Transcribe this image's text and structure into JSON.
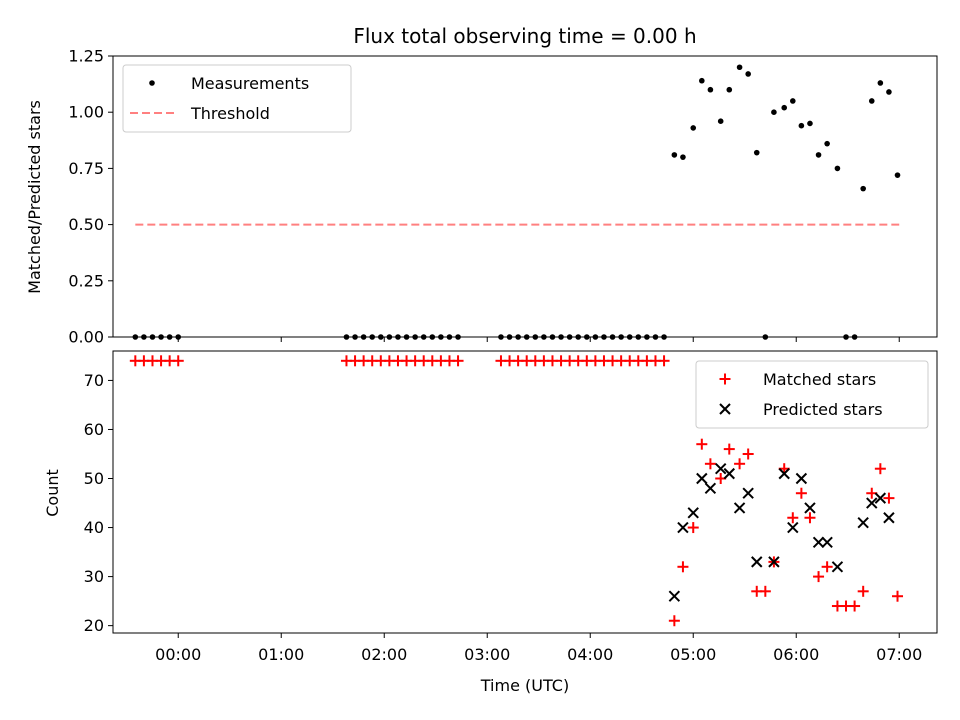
{
  "chart_data": [
    {
      "type": "scatter",
      "title": "Flux total observing time = 0.00 h",
      "ylabel": "Matched/Predicted stars",
      "ylim": [
        0,
        1.25
      ],
      "yticks": [
        "0.00",
        "0.25",
        "0.50",
        "0.75",
        "1.00",
        "1.25"
      ],
      "legend_position": "top-left",
      "series": [
        {
          "name": "Measurements",
          "marker": "dot",
          "color": "#000000",
          "x": [
            "23:35",
            "23:40",
            "23:45",
            "23:50",
            "23:55",
            "00:00",
            "01:38",
            "01:43",
            "01:48",
            "01:53",
            "01:58",
            "02:03",
            "02:08",
            "02:13",
            "02:18",
            "02:23",
            "02:28",
            "02:33",
            "02:38",
            "02:43",
            "03:08",
            "03:13",
            "03:18",
            "03:23",
            "03:28",
            "03:33",
            "03:38",
            "03:43",
            "03:48",
            "03:53",
            "03:58",
            "04:03",
            "04:08",
            "04:13",
            "04:18",
            "04:23",
            "04:28",
            "04:33",
            "04:38",
            "04:43",
            "04:49",
            "04:54",
            "05:00",
            "05:05",
            "05:10",
            "05:16",
            "05:21",
            "05:27",
            "05:32",
            "05:37",
            "05:42",
            "05:47",
            "05:53",
            "05:58",
            "06:03",
            "06:08",
            "06:13",
            "06:18",
            "06:24",
            "06:29",
            "06:34",
            "06:39",
            "06:44",
            "06:49",
            "06:54",
            "06:59"
          ],
          "y": [
            0,
            0,
            0,
            0,
            0,
            0,
            0,
            0,
            0,
            0,
            0,
            0,
            0,
            0,
            0,
            0,
            0,
            0,
            0,
            0,
            0,
            0,
            0,
            0,
            0,
            0,
            0,
            0,
            0,
            0,
            0,
            0,
            0,
            0,
            0,
            0,
            0,
            0,
            0,
            0,
            0.81,
            0.8,
            0.93,
            1.14,
            1.1,
            0.96,
            1.1,
            1.2,
            1.17,
            0.82,
            0.0,
            1.0,
            1.02,
            1.05,
            0.94,
            0.95,
            0.81,
            0.86,
            0.75,
            0.0,
            0.0,
            0.66,
            1.05,
            1.13,
            1.09,
            0.72
          ]
        },
        {
          "name": "Threshold",
          "type": "line",
          "style": "dashed",
          "color": "#ff8080",
          "x": [
            "23:35",
            "07:00"
          ],
          "y": [
            0.5,
            0.5
          ]
        }
      ]
    },
    {
      "type": "scatter",
      "xlabel": "Time (UTC)",
      "ylabel": "Count",
      "ylim": [
        18.5,
        76
      ],
      "yticks": [
        "20",
        "30",
        "40",
        "50",
        "60",
        "70"
      ],
      "xticks": [
        "00:00",
        "01:00",
        "02:00",
        "03:00",
        "04:00",
        "05:00",
        "06:00",
        "07:00"
      ],
      "xlim": [
        "23:22",
        "07:22"
      ],
      "legend_position": "top-right",
      "series": [
        {
          "name": "Matched stars",
          "marker": "plus",
          "color": "#ff0000",
          "x": [
            "23:35",
            "23:40",
            "23:45",
            "23:50",
            "23:55",
            "00:00",
            "01:38",
            "01:43",
            "01:48",
            "01:53",
            "01:58",
            "02:03",
            "02:08",
            "02:13",
            "02:18",
            "02:23",
            "02:28",
            "02:33",
            "02:38",
            "02:43",
            "03:08",
            "03:13",
            "03:18",
            "03:23",
            "03:28",
            "03:33",
            "03:38",
            "03:43",
            "03:48",
            "03:53",
            "03:58",
            "04:03",
            "04:08",
            "04:13",
            "04:18",
            "04:23",
            "04:28",
            "04:33",
            "04:38",
            "04:43",
            "04:49",
            "04:54",
            "05:00",
            "05:05",
            "05:10",
            "05:16",
            "05:21",
            "05:27",
            "05:32",
            "05:37",
            "05:42",
            "05:47",
            "05:53",
            "05:58",
            "06:03",
            "06:08",
            "06:13",
            "06:18",
            "06:24",
            "06:29",
            "06:34",
            "06:39",
            "06:44",
            "06:49",
            "06:54",
            "06:59"
          ],
          "y": [
            74,
            74,
            74,
            74,
            74,
            74,
            74,
            74,
            74,
            74,
            74,
            74,
            74,
            74,
            74,
            74,
            74,
            74,
            74,
            74,
            74,
            74,
            74,
            74,
            74,
            74,
            74,
            74,
            74,
            74,
            74,
            74,
            74,
            74,
            74,
            74,
            74,
            74,
            74,
            74,
            21,
            32,
            40,
            57,
            53,
            50,
            56,
            53,
            55,
            27,
            27,
            33,
            52,
            42,
            47,
            42,
            30,
            32,
            24,
            24,
            24,
            27,
            47,
            52,
            46,
            26
          ]
        },
        {
          "name": "Predicted stars",
          "marker": "x",
          "color": "#000000",
          "x": [
            "04:49",
            "04:54",
            "05:00",
            "05:05",
            "05:10",
            "05:16",
            "05:21",
            "05:27",
            "05:32",
            "05:37",
            "05:47",
            "05:53",
            "05:58",
            "06:03",
            "06:08",
            "06:13",
            "06:18",
            "06:24",
            "06:39",
            "06:44",
            "06:49",
            "06:54"
          ],
          "y": [
            26,
            40,
            43,
            50,
            48,
            52,
            51,
            44,
            47,
            33,
            33,
            51,
            40,
            50,
            44,
            37,
            37,
            32,
            41,
            45,
            46,
            42
          ]
        }
      ]
    }
  ]
}
